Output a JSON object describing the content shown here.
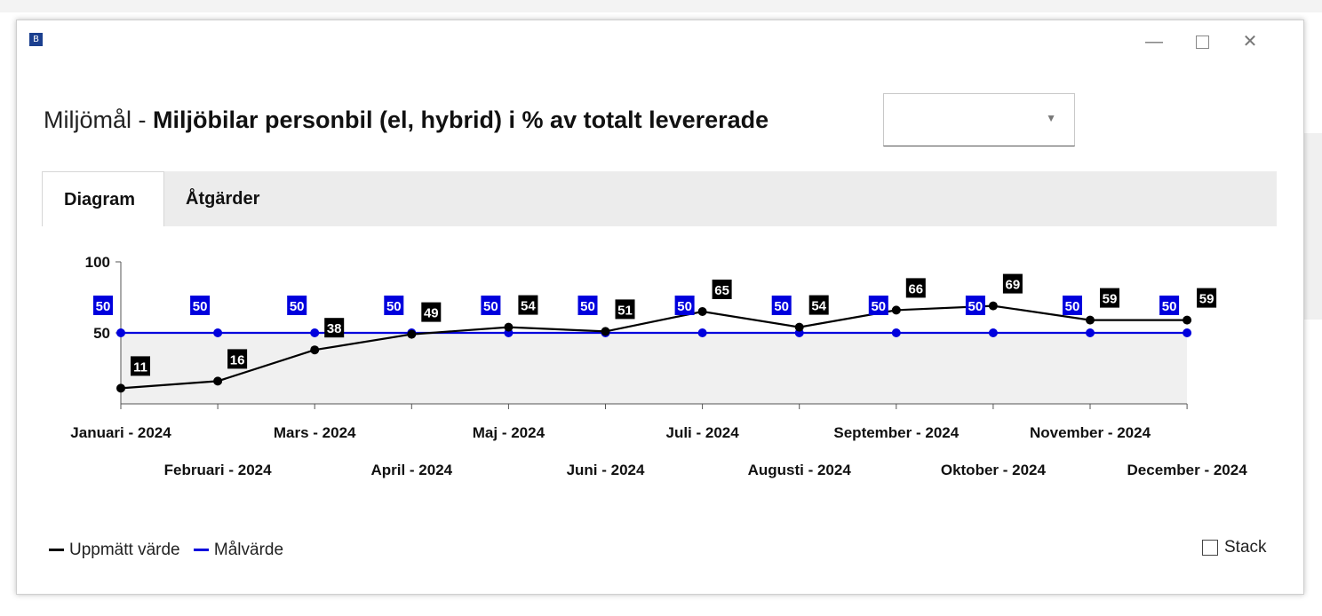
{
  "window": {
    "icon_letter": "B",
    "minimize_label": "—",
    "close_label": "✕"
  },
  "header": {
    "title_prefix": "Miljömål - ",
    "title_bold": "Miljöbilar personbil (el, hybrid) i % av totalt levererade",
    "dropdown_value": "",
    "dropdown_arrow": "▼"
  },
  "tabs": [
    {
      "label": "Diagram",
      "active": true
    },
    {
      "label": "Åtgärder",
      "active": false
    }
  ],
  "legend": {
    "items": [
      {
        "label": "Uppmätt värde",
        "color": "#000000"
      },
      {
        "label": "Målvärde",
        "color": "#0000dd"
      }
    ],
    "stack_label": "Stack",
    "stack_checked": false
  },
  "chart_data": {
    "type": "line",
    "categories": [
      "Januari - 2024",
      "Februari - 2024",
      "Mars - 2024",
      "April - 2024",
      "Maj - 2024",
      "Juni - 2024",
      "Juli - 2024",
      "Augusti - 2024",
      "September - 2024",
      "Oktober - 2024",
      "November - 2024",
      "December - 2024"
    ],
    "series": [
      {
        "name": "Uppmätt värde",
        "color": "#000000",
        "values": [
          11,
          16,
          38,
          49,
          54,
          51,
          65,
          54,
          66,
          69,
          59,
          59
        ]
      },
      {
        "name": "Målvärde",
        "color": "#0000dd",
        "values": [
          50,
          50,
          50,
          50,
          50,
          50,
          50,
          50,
          50,
          50,
          50,
          50
        ]
      }
    ],
    "y_ticks": [
      50,
      100
    ],
    "ylim": [
      0,
      100
    ],
    "area_fill": "#f0f0f0",
    "data_labels": true,
    "legend_position": "bottom-left"
  }
}
